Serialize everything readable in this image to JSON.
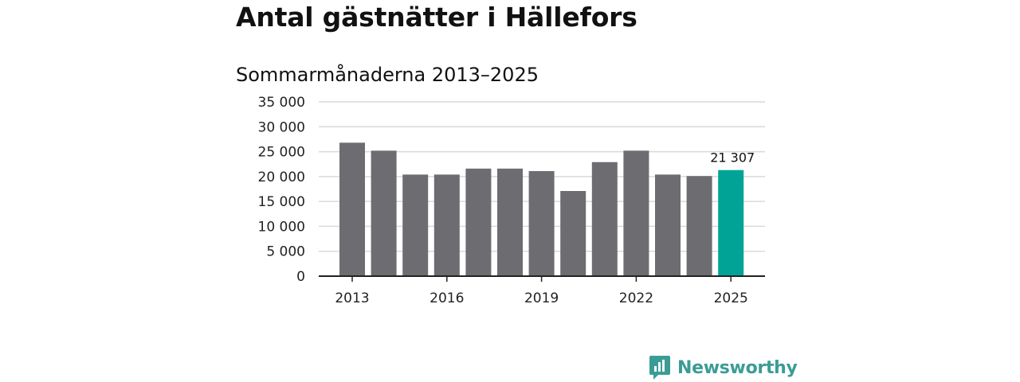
{
  "title": "Antal gästnätter i Hällefors",
  "subtitle": "Sommarmånaderna 2013–2025",
  "brand": {
    "name": "Newsworthy",
    "icon": "newsworthy-logo-icon",
    "color": "#3b9c96"
  },
  "chart_data": {
    "type": "bar",
    "categories": [
      "2013",
      "2014",
      "2015",
      "2016",
      "2017",
      "2018",
      "2019",
      "2020",
      "2021",
      "2022",
      "2023",
      "2024",
      "2025"
    ],
    "values": [
      26800,
      25200,
      20400,
      20400,
      21600,
      21600,
      21100,
      17100,
      22900,
      25200,
      20400,
      20100,
      21307
    ],
    "ylim": [
      0,
      35000
    ],
    "yticks": [
      0,
      5000,
      10000,
      15000,
      20000,
      25000,
      30000,
      35000
    ],
    "ytick_labels": [
      "0",
      "5 000",
      "10 000",
      "15 000",
      "20 000",
      "25 000",
      "30 000",
      "35 000"
    ],
    "xtick_labels": [
      "2013",
      "2016",
      "2019",
      "2022",
      "2025"
    ],
    "highlight": {
      "category": "2025",
      "label": "21 307"
    },
    "grid": true,
    "colors": {
      "bar": "#6d6c70",
      "highlight": "#00a396",
      "grid": "#d9d9d9",
      "axis": "#222222"
    }
  }
}
